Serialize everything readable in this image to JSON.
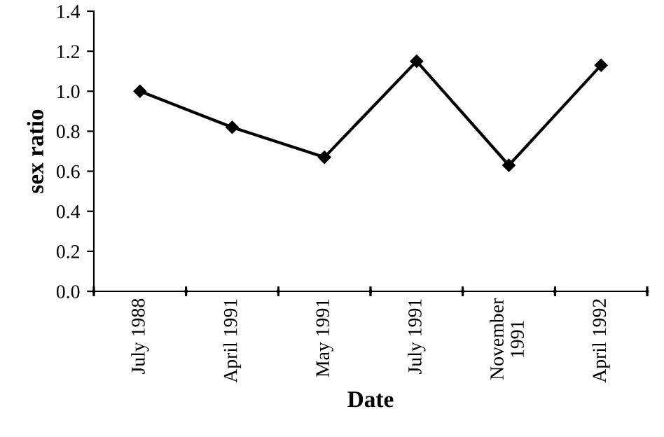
{
  "chart_data": {
    "type": "line",
    "xlabel": "Date",
    "ylabel": "sex ratio",
    "categories": [
      "July 1988",
      "April 1991",
      "May 1991",
      "July 1991",
      "November\n1991",
      "April 1992"
    ],
    "series": [
      {
        "color": "#000000",
        "values": [
          1.0,
          0.82,
          0.67,
          1.15,
          0.63,
          1.13
        ]
      }
    ],
    "ylim": [
      0,
      1.4
    ],
    "yticks": [
      {
        "value": 0,
        "label": "0.0"
      },
      {
        "value": 0.2,
        "label": "0.2"
      },
      {
        "value": 0.4,
        "label": "0.4"
      },
      {
        "value": 0.6,
        "label": "0.6"
      },
      {
        "value": 0.8,
        "label": "0.8"
      },
      {
        "value": 1,
        "label": "1.0"
      },
      {
        "value": 1.2,
        "label": "1.2"
      },
      {
        "value": 1.4,
        "label": "1.4"
      }
    ],
    "marker": "diamond",
    "line_style": "solid",
    "grid": false,
    "legend": false
  }
}
